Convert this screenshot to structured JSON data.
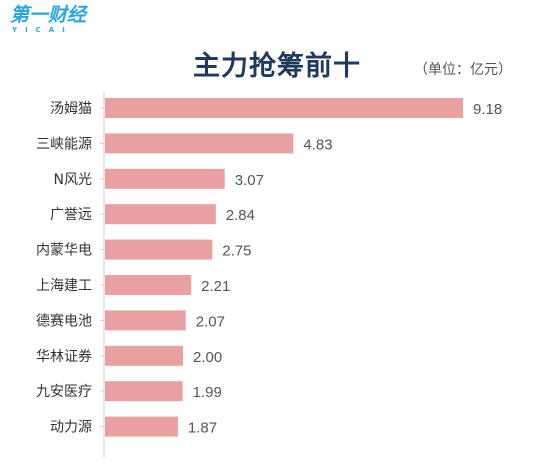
{
  "logo": {
    "main": "第一财经",
    "sub": "YICAI"
  },
  "title": "主力抢筹前十",
  "unit": "（单位：亿元）",
  "colors": {
    "bar": "#e8a0a0",
    "axis": "#cfcfcf",
    "title": "#1e3a5f",
    "brand": "#29a8e0"
  },
  "chart_data": {
    "type": "bar",
    "orientation": "horizontal",
    "title": "主力抢筹前十",
    "unit": "（单位：亿元）",
    "categories": [
      "汤姆猫",
      "三峡能源",
      "N风光",
      "广誉远",
      "内蒙华电",
      "上海建工",
      "德赛电池",
      "华林证券",
      "九安医疗",
      "动力源"
    ],
    "values": [
      9.18,
      4.83,
      3.07,
      2.84,
      2.75,
      2.21,
      2.07,
      2.0,
      1.99,
      1.87
    ],
    "value_labels": [
      "9.18",
      "4.83",
      "3.07",
      "2.84",
      "2.75",
      "2.21",
      "2.07",
      "2.00",
      "1.99",
      "1.87"
    ],
    "xlim": [
      0,
      9.18
    ],
    "grid": false,
    "legend": "none"
  }
}
